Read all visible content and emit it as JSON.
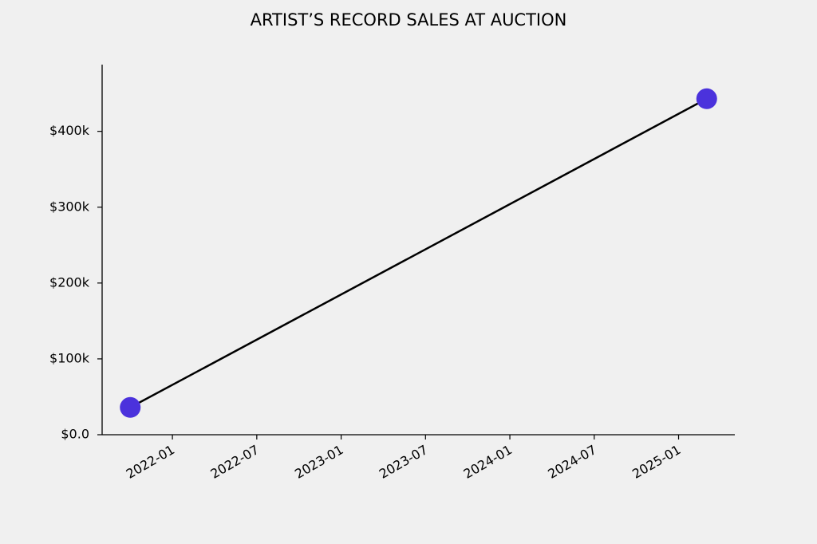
{
  "chart_data": {
    "type": "line",
    "title": "ARTIST’S RECORD SALES AT AUCTION",
    "x": [
      "2021-10",
      "2025-03"
    ],
    "series": [
      {
        "values": [
          36000,
          443000
        ],
        "color": "#4b32dc",
        "line_color": "#000000"
      }
    ],
    "xlim": [
      "2021-08",
      "2025-05"
    ],
    "xticks": [
      "2022-01",
      "2022-07",
      "2023-01",
      "2023-07",
      "2024-01",
      "2024-07",
      "2025-01"
    ],
    "ylim": [
      0,
      488000
    ],
    "yticks": [
      {
        "value": 0,
        "label": "$0.0"
      },
      {
        "value": 100000,
        "label": "$100k"
      },
      {
        "value": 200000,
        "label": "$200k"
      },
      {
        "value": 300000,
        "label": "$300k"
      },
      {
        "value": 400000,
        "label": "$400k"
      }
    ],
    "grid": false
  }
}
